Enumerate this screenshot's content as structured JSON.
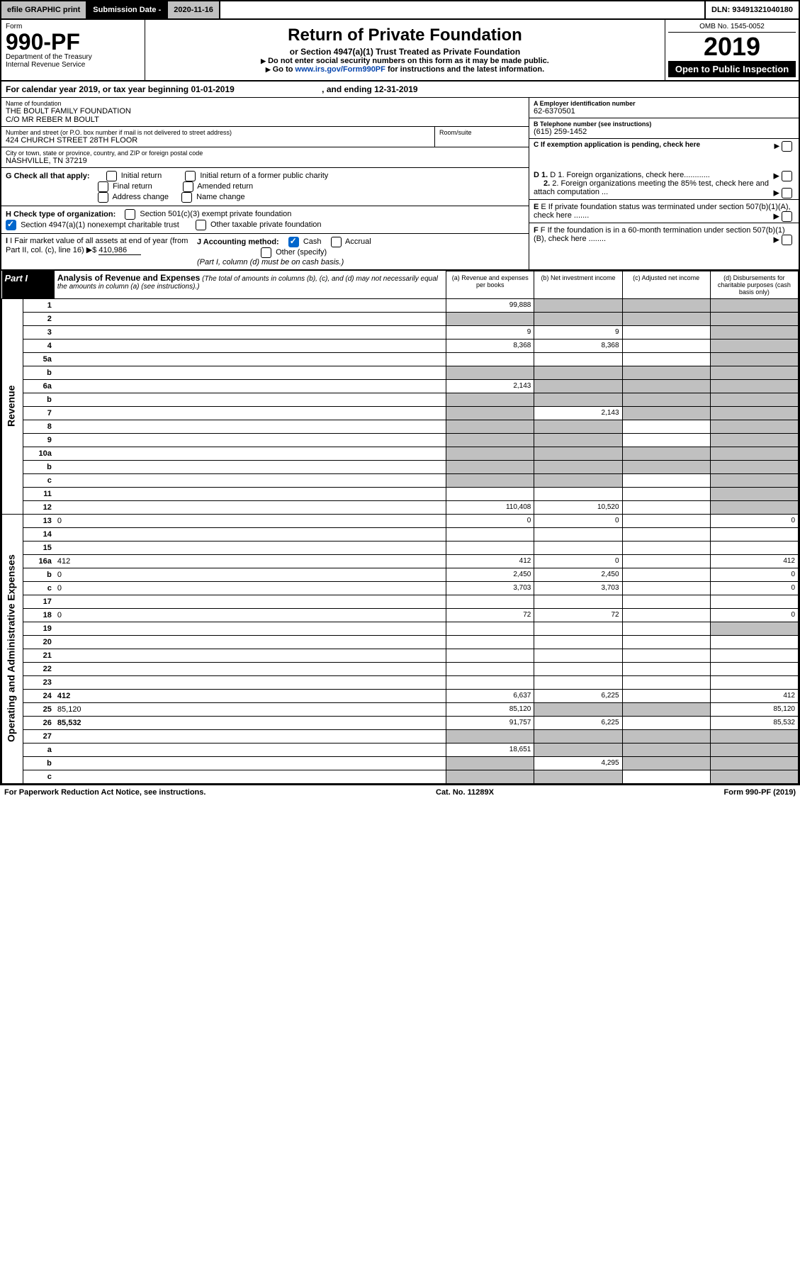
{
  "top": {
    "efile": "efile GRAPHIC print",
    "subm_label": "Submission Date - ",
    "subm_date": "2020-11-16",
    "dln": "DLN: 93491321040180"
  },
  "header": {
    "form_label": "Form",
    "form_no": "990-PF",
    "dept": "Department of the Treasury",
    "irs": "Internal Revenue Service",
    "title": "Return of Private Foundation",
    "subtitle": "or Section 4947(a)(1) Trust Treated as Private Foundation",
    "note1": "Do not enter social security numbers on this form as it may be made public.",
    "note2_pre": "Go to ",
    "note2_link": "www.irs.gov/Form990PF",
    "note2_post": " for instructions and the latest information.",
    "omb": "OMB No. 1545-0052",
    "year": "2019",
    "open": "Open to Public Inspection"
  },
  "cal": {
    "text": "For calendar year 2019, or tax year beginning 01-01-2019",
    "ending": ", and ending 12-31-2019"
  },
  "entity": {
    "name_label": "Name of foundation",
    "name1": "THE BOULT FAMILY FOUNDATION",
    "name2": "C/O MR REBER M BOULT",
    "addr_label": "Number and street (or P.O. box number if mail is not delivered to street address)",
    "addr": "424 CHURCH STREET 28TH FLOOR",
    "room_label": "Room/suite",
    "city_label": "City or town, state or province, country, and ZIP or foreign postal code",
    "city": "NASHVILLE, TN  37219",
    "ein_label": "A Employer identification number",
    "ein": "62-6370501",
    "tel_label": "B Telephone number (see instructions)",
    "tel": "(615) 259-1452",
    "c_label": "C If exemption application is pending, check here"
  },
  "checks": {
    "g_label": "G Check all that apply:",
    "initial": "Initial return",
    "initial_former": "Initial return of a former public charity",
    "final": "Final return",
    "amended": "Amended return",
    "addr_change": "Address change",
    "name_change": "Name change",
    "h_label": "H Check type of organization:",
    "h_501c3": "Section 501(c)(3) exempt private foundation",
    "h_4947": "Section 4947(a)(1) nonexempt charitable trust",
    "h_other": "Other taxable private foundation",
    "i_label": "I Fair market value of all assets at end of year (from Part II, col. (c), line 16)",
    "i_val": "410,986",
    "j_label": "J Accounting method:",
    "j_cash": "Cash",
    "j_accrual": "Accrual",
    "j_other": "Other (specify)",
    "j_note": "(Part I, column (d) must be on cash basis.)",
    "d1": "D 1. Foreign organizations, check here............",
    "d2": "2. Foreign organizations meeting the 85% test, check here and attach computation ...",
    "e_label": "E  If private foundation status was terminated under section 507(b)(1)(A), check here .......",
    "f_label": "F  If the foundation is in a 60-month termination under section 507(b)(1)(B), check here ........"
  },
  "part1": {
    "label": "Part I",
    "title": "Analysis of Revenue and Expenses",
    "subtitle": "(The total of amounts in columns (b), (c), and (d) may not necessarily equal the amounts in column (a) (see instructions).)",
    "col_a": "(a) Revenue and expenses per books",
    "col_b": "(b) Net investment income",
    "col_c": "(c) Adjusted net income",
    "col_d": "(d) Disbursements for charitable purposes (cash basis only)",
    "revenue_label": "Revenue",
    "expenses_label": "Operating and Administrative Expenses",
    "rows": [
      {
        "n": "1",
        "d": "",
        "a": "99,888",
        "b": "",
        "c": "",
        "gb": true,
        "gc": true,
        "gd": true
      },
      {
        "n": "2",
        "d": "",
        "a": "",
        "b": "",
        "c": "",
        "ga": true,
        "gb": true,
        "gc": true,
        "gd": true
      },
      {
        "n": "3",
        "d": "",
        "a": "9",
        "b": "9",
        "c": "",
        "gd": true
      },
      {
        "n": "4",
        "d": "",
        "a": "8,368",
        "b": "8,368",
        "c": "",
        "gd": true
      },
      {
        "n": "5a",
        "d": "",
        "a": "",
        "b": "",
        "c": "",
        "gd": true
      },
      {
        "n": "b",
        "d": "",
        "a": "",
        "b": "",
        "c": "",
        "ga": true,
        "gb": true,
        "gc": true,
        "gd": true
      },
      {
        "n": "6a",
        "d": "",
        "a": "2,143",
        "b": "",
        "c": "",
        "gb": true,
        "gc": true,
        "gd": true
      },
      {
        "n": "b",
        "d": "",
        "a": "",
        "b": "",
        "c": "",
        "ga": true,
        "gb": true,
        "gc": true,
        "gd": true
      },
      {
        "n": "7",
        "d": "",
        "a": "",
        "b": "2,143",
        "c": "",
        "ga": true,
        "gc": true,
        "gd": true
      },
      {
        "n": "8",
        "d": "",
        "a": "",
        "b": "",
        "c": "",
        "ga": true,
        "gb": true,
        "gd": true
      },
      {
        "n": "9",
        "d": "",
        "a": "",
        "b": "",
        "c": "",
        "ga": true,
        "gb": true,
        "gd": true
      },
      {
        "n": "10a",
        "d": "",
        "a": "",
        "b": "",
        "c": "",
        "ga": true,
        "gb": true,
        "gc": true,
        "gd": true
      },
      {
        "n": "b",
        "d": "",
        "a": "",
        "b": "",
        "c": "",
        "ga": true,
        "gb": true,
        "gc": true,
        "gd": true
      },
      {
        "n": "c",
        "d": "",
        "a": "",
        "b": "",
        "c": "",
        "ga": true,
        "gb": true,
        "gd": true
      },
      {
        "n": "11",
        "d": "",
        "a": "",
        "b": "",
        "c": "",
        "gd": true
      },
      {
        "n": "12",
        "d": "",
        "a": "110,408",
        "b": "10,520",
        "c": "",
        "bold": true,
        "gd": true
      }
    ],
    "exp_rows": [
      {
        "n": "13",
        "d": "0",
        "a": "0",
        "b": "0",
        "c": ""
      },
      {
        "n": "14",
        "d": "",
        "a": "",
        "b": "",
        "c": ""
      },
      {
        "n": "15",
        "d": "",
        "a": "",
        "b": "",
        "c": ""
      },
      {
        "n": "16a",
        "d": "412",
        "a": "412",
        "b": "0",
        "c": ""
      },
      {
        "n": "b",
        "d": "0",
        "a": "2,450",
        "b": "2,450",
        "c": ""
      },
      {
        "n": "c",
        "d": "0",
        "a": "3,703",
        "b": "3,703",
        "c": ""
      },
      {
        "n": "17",
        "d": "",
        "a": "",
        "b": "",
        "c": ""
      },
      {
        "n": "18",
        "d": "0",
        "a": "72",
        "b": "72",
        "c": ""
      },
      {
        "n": "19",
        "d": "",
        "a": "",
        "b": "",
        "c": "",
        "gd": true
      },
      {
        "n": "20",
        "d": "",
        "a": "",
        "b": "",
        "c": ""
      },
      {
        "n": "21",
        "d": "",
        "a": "",
        "b": "",
        "c": ""
      },
      {
        "n": "22",
        "d": "",
        "a": "",
        "b": "",
        "c": ""
      },
      {
        "n": "23",
        "d": "",
        "a": "",
        "b": "",
        "c": ""
      },
      {
        "n": "24",
        "d": "412",
        "a": "6,637",
        "b": "6,225",
        "c": "",
        "bold": true
      },
      {
        "n": "25",
        "d": "85,120",
        "a": "85,120",
        "b": "",
        "c": "",
        "gb": true,
        "gc": true
      },
      {
        "n": "26",
        "d": "85,532",
        "a": "91,757",
        "b": "6,225",
        "c": "",
        "bold": true
      },
      {
        "n": "27",
        "d": "",
        "a": "",
        "b": "",
        "c": "",
        "ga": true,
        "gb": true,
        "gc": true,
        "gd": true
      },
      {
        "n": "a",
        "d": "",
        "a": "18,651",
        "b": "",
        "c": "",
        "bold": true,
        "gb": true,
        "gc": true,
        "gd": true
      },
      {
        "n": "b",
        "d": "",
        "a": "",
        "b": "4,295",
        "c": "",
        "bold": true,
        "ga": true,
        "gc": true,
        "gd": true
      },
      {
        "n": "c",
        "d": "",
        "a": "",
        "b": "",
        "c": "",
        "bold": true,
        "ga": true,
        "gb": true,
        "gd": true
      }
    ]
  },
  "footer": {
    "left": "For Paperwork Reduction Act Notice, see instructions.",
    "center": "Cat. No. 11289X",
    "right": "Form 990-PF (2019)"
  }
}
